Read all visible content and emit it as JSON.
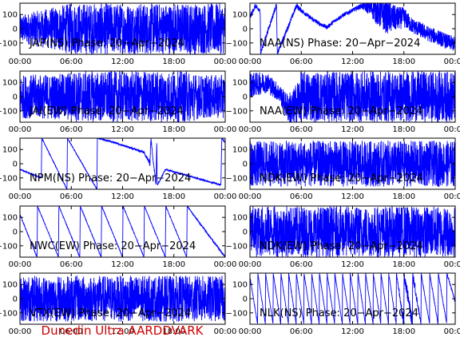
{
  "footer": "Dunedin Ultra AARDDVARK",
  "colors": {
    "trace": "#0000ff",
    "axes": "#000000",
    "footer": "#d00000",
    "background": "#ffffff"
  },
  "chart_data": [
    {
      "type": "line",
      "title": "JAP(NS) Phase: 20−Apr−2024",
      "ylim": [
        -180,
        180
      ],
      "yticks": [
        {
          "v": 100,
          "label": "100"
        },
        {
          "v": 0,
          "label": "0"
        },
        {
          "v": -100,
          "label": "−100"
        }
      ],
      "xlim": [
        0,
        24
      ],
      "xticks": [
        {
          "v": 0,
          "label": "00:00"
        },
        {
          "v": 6,
          "label": "06:00"
        },
        {
          "v": 12,
          "label": "12:00"
        },
        {
          "v": 18,
          "label": "18:00"
        },
        {
          "v": 24,
          "label": "00:00"
        }
      ],
      "series": [
        {
          "pattern": "noise",
          "x": [
            0,
            6,
            24
          ],
          "noise": [
            0.55,
            1,
            1
          ]
        }
      ]
    },
    {
      "type": "line",
      "title": "NAA(NS) Phase: 20−Apr−2024",
      "ylim": [
        -180,
        180
      ],
      "yticks": [
        {
          "v": 100,
          "label": "100"
        },
        {
          "v": 0,
          "label": "0"
        },
        {
          "v": -100,
          "label": "−100"
        }
      ],
      "xlim": [
        0,
        24
      ],
      "xticks": [
        {
          "v": 0,
          "label": "00:00"
        },
        {
          "v": 6,
          "label": "06:00"
        },
        {
          "v": 12,
          "label": "12:00"
        },
        {
          "v": 18,
          "label": "18:00"
        },
        {
          "v": 24,
          "label": "00:00"
        }
      ],
      "series": [
        {
          "pattern": "path",
          "x": [
            0,
            0.6,
            1.2,
            1.25,
            3.1,
            3.2,
            5.5,
            5.6,
            7,
            8,
            9,
            10,
            11,
            12,
            13,
            14,
            15,
            16,
            17,
            18,
            19,
            20,
            21,
            22,
            23,
            24
          ],
          "y": [
            80,
            160,
            120,
            -170,
            170,
            -175,
            170,
            150,
            80,
            40,
            10,
            60,
            100,
            130,
            160,
            150,
            120,
            90,
            70,
            80,
            20,
            -10,
            -40,
            -60,
            -90,
            -110
          ],
          "noise": [
            0.1,
            0.1,
            0.1,
            0.1,
            0.1,
            0.1,
            0.1,
            0.1,
            0.08,
            0.08,
            0.08,
            0.08,
            0.08,
            0.08,
            0.1,
            0.3,
            0.6,
            0.7,
            0.5,
            0.4,
            0.3,
            0.3,
            0.3,
            0.3,
            0.3,
            0.3
          ]
        }
      ]
    },
    {
      "type": "line",
      "title": "JAI(EW) Phase: 20−Apr−2024",
      "ylim": [
        -180,
        180
      ],
      "yticks": [
        {
          "v": 100,
          "label": "100"
        },
        {
          "v": 0,
          "label": "0"
        },
        {
          "v": -100,
          "label": "−100"
        }
      ],
      "xlim": [
        0,
        24
      ],
      "xticks": [
        {
          "v": 0,
          "label": "00:00"
        },
        {
          "v": 6,
          "label": "06:00"
        },
        {
          "v": 12,
          "label": "12:00"
        },
        {
          "v": 18,
          "label": "18:00"
        },
        {
          "v": 24,
          "label": "00:00"
        }
      ],
      "series": [
        {
          "pattern": "noise",
          "x": [
            0,
            5,
            6,
            20,
            21,
            24
          ],
          "noise": [
            0.85,
            0.9,
            1,
            1,
            0.85,
            0.85
          ]
        }
      ]
    },
    {
      "type": "line",
      "title": "NAA(EW) Phase: 20−Apr−2024",
      "ylim": [
        -180,
        180
      ],
      "yticks": [
        {
          "v": 100,
          "label": "100"
        },
        {
          "v": 0,
          "label": "0"
        },
        {
          "v": -100,
          "label": "−100"
        }
      ],
      "xlim": [
        0,
        24
      ],
      "xticks": [
        {
          "v": 0,
          "label": "00:00"
        },
        {
          "v": 6,
          "label": "06:00"
        },
        {
          "v": 12,
          "label": "12:00"
        },
        {
          "v": 18,
          "label": "18:00"
        },
        {
          "v": 24,
          "label": "00:00"
        }
      ],
      "series": [
        {
          "pattern": "path",
          "x": [
            0,
            2,
            3.5,
            4.2,
            5,
            6,
            12,
            18,
            24
          ],
          "y": [
            80,
            100,
            20,
            -60,
            -100,
            0,
            0,
            0,
            0
          ],
          "noise": [
            0.5,
            0.4,
            0.35,
            0.5,
            0.8,
            1,
            1,
            1,
            1
          ]
        }
      ]
    },
    {
      "type": "line",
      "title": "NPM(NS) Phase: 20−Apr−2024",
      "ylim": [
        -180,
        180
      ],
      "yticks": [
        {
          "v": 100,
          "label": "100"
        },
        {
          "v": 0,
          "label": "0"
        },
        {
          "v": -100,
          "label": "−100"
        }
      ],
      "xlim": [
        0,
        24
      ],
      "xticks": [
        {
          "v": 0,
          "label": "00:00"
        },
        {
          "v": 6,
          "label": "06:00"
        },
        {
          "v": 12,
          "label": "12:00"
        },
        {
          "v": 18,
          "label": "18:00"
        },
        {
          "v": 24,
          "label": "00:00"
        }
      ],
      "series": [
        {
          "pattern": "path",
          "x": [
            0,
            2.5,
            2.55,
            5.5,
            5.55,
            9,
            9.05,
            11,
            14.5,
            15.2,
            15.3,
            15.9,
            16,
            16.05,
            17,
            20,
            23.5,
            23.6,
            24
          ],
          "y": [
            -40,
            -100,
            180,
            -180,
            180,
            -180,
            180,
            150,
            80,
            0,
            180,
            -150,
            180,
            -150,
            -40,
            -90,
            -150,
            180,
            150
          ],
          "noise": [
            0.02,
            0.02,
            0.02,
            0.02,
            0.02,
            0.02,
            0.02,
            0.03,
            0.05,
            0.1,
            0.1,
            0.1,
            0.1,
            0.05,
            0.03,
            0.03,
            0.03,
            0.03,
            0.03
          ]
        }
      ]
    },
    {
      "type": "line",
      "title": "NDK(EW) Phase: 20−Apr−2024",
      "ylim": [
        -180,
        180
      ],
      "yticks": [
        {
          "v": 100,
          "label": "100"
        },
        {
          "v": 0,
          "label": "0"
        },
        {
          "v": -100,
          "label": "−100"
        }
      ],
      "xlim": [
        0,
        24
      ],
      "xticks": [
        {
          "v": 0,
          "label": "00:00"
        },
        {
          "v": 6,
          "label": "06:00"
        },
        {
          "v": 12,
          "label": "12:00"
        },
        {
          "v": 18,
          "label": "18:00"
        },
        {
          "v": 24,
          "label": "00:00"
        }
      ],
      "series": [
        {
          "pattern": "noise",
          "x": [
            0,
            24
          ],
          "noise": [
            0.9,
            0.9
          ]
        }
      ]
    },
    {
      "type": "line",
      "title": "NWC(EW) Phase: 20−Apr−2024",
      "ylim": [
        -180,
        180
      ],
      "yticks": [
        {
          "v": 100,
          "label": "100"
        },
        {
          "v": 0,
          "label": "0"
        },
        {
          "v": -100,
          "label": "−100"
        }
      ],
      "xlim": [
        0,
        24
      ],
      "xticks": [
        {
          "v": 0,
          "label": "00:00"
        },
        {
          "v": 6,
          "label": "06:00"
        },
        {
          "v": 12,
          "label": "12:00"
        },
        {
          "v": 18,
          "label": "18:00"
        },
        {
          "v": 24,
          "label": "00:00"
        }
      ],
      "series": [
        {
          "pattern": "path",
          "x": [
            0,
            2,
            2.05,
            4.5,
            4.55,
            7,
            7.05,
            9.5,
            9.55,
            12,
            12.05,
            14.5,
            14.55,
            17,
            17.05,
            19.5,
            19.55,
            22,
            24
          ],
          "y": [
            120,
            -180,
            180,
            -180,
            180,
            -180,
            180,
            -180,
            180,
            -180,
            180,
            -180,
            180,
            -180,
            180,
            -180,
            180,
            -20,
            -180
          ],
          "noise": [
            0.02,
            0.02,
            0.02,
            0.02,
            0.02,
            0.02,
            0.02,
            0.02,
            0.02,
            0.02,
            0.02,
            0.02,
            0.02,
            0.02,
            0.02,
            0.02,
            0.02,
            0.05,
            0.05
          ]
        }
      ]
    },
    {
      "type": "line",
      "title": "NDK(EW) Phase: 20−Apr−2024",
      "ylim": [
        -180,
        180
      ],
      "yticks": [
        {
          "v": 100,
          "label": "100"
        },
        {
          "v": 0,
          "label": "0"
        },
        {
          "v": -100,
          "label": "−100"
        }
      ],
      "xlim": [
        0,
        24
      ],
      "xticks": [
        {
          "v": 0,
          "label": "00:00"
        },
        {
          "v": 6,
          "label": "06:00"
        },
        {
          "v": 12,
          "label": "12:00"
        },
        {
          "v": 18,
          "label": "18:00"
        },
        {
          "v": 24,
          "label": "00:00"
        }
      ],
      "series": [
        {
          "pattern": "noise",
          "x": [
            0,
            24
          ],
          "noise": [
            1,
            1
          ]
        }
      ]
    },
    {
      "type": "line",
      "title": "VTX(EW) Phase: 20−Apr−2024",
      "ylim": [
        -180,
        180
      ],
      "yticks": [
        {
          "v": 100,
          "label": "100"
        },
        {
          "v": 0,
          "label": "0"
        },
        {
          "v": -100,
          "label": "−100"
        }
      ],
      "xlim": [
        0,
        24
      ],
      "xticks": [
        {
          "v": 0,
          "label": "00:00"
        },
        {
          "v": 6,
          "label": "06:00"
        },
        {
          "v": 12,
          "label": "12:00"
        },
        {
          "v": 18,
          "label": "18:00"
        },
        {
          "v": 24,
          "label": "00:00"
        }
      ],
      "series": [
        {
          "pattern": "noise",
          "x": [
            0,
            24
          ],
          "noise": [
            0.9,
            0.9
          ]
        }
      ]
    },
    {
      "type": "line",
      "title": "NLK(NS) Phase: 20−Apr−2024",
      "ylim": [
        -180,
        180
      ],
      "yticks": [
        {
          "v": 100,
          "label": "100"
        },
        {
          "v": 0,
          "label": "0"
        },
        {
          "v": -100,
          "label": "−100"
        }
      ],
      "xlim": [
        0,
        24
      ],
      "xticks": [
        {
          "v": 0,
          "label": "00:00"
        },
        {
          "v": 6,
          "label": "06:00"
        },
        {
          "v": 12,
          "label": "12:00"
        },
        {
          "v": 18,
          "label": "18:00"
        },
        {
          "v": 24,
          "label": "00:00"
        }
      ],
      "series": [
        {
          "pattern": "path",
          "x": [
            0,
            0.9,
            0.92,
            1.8,
            1.82,
            2.7,
            2.72,
            3.6,
            3.62,
            4.5,
            4.52,
            5.4,
            5.42,
            6.3,
            6.32,
            7.2,
            7.22,
            8.1,
            8.12,
            9,
            9.02,
            9.9,
            9.92,
            10.8,
            10.82,
            11.7,
            11.72,
            12.6,
            12.62,
            13.5,
            13.52,
            14.4,
            14.42,
            15.3,
            15.32,
            16.2,
            16.22,
            17.1,
            17.12,
            18,
            18.02,
            19,
            19.02,
            20,
            20.02,
            21,
            21.02,
            22,
            22.02,
            23,
            23.02,
            24
          ],
          "y": [
            150,
            -180,
            180,
            -180,
            180,
            -180,
            180,
            -180,
            180,
            -180,
            180,
            -180,
            180,
            -180,
            180,
            -180,
            180,
            -180,
            180,
            -180,
            180,
            -180,
            180,
            -180,
            180,
            -180,
            180,
            -180,
            180,
            -180,
            180,
            -180,
            180,
            -180,
            180,
            -180,
            180,
            -180,
            180,
            -180,
            180,
            -180,
            180,
            -180,
            180,
            -180,
            180,
            -180,
            180,
            -180,
            180,
            -20
          ],
          "noise": [
            0.03,
            0.03,
            0.03,
            0.03,
            0.03,
            0.03,
            0.03,
            0.03,
            0.03,
            0.03,
            0.03,
            0.03,
            0.03,
            0.03,
            0.03,
            0.03,
            0.03,
            0.03,
            0.03,
            0.03,
            0.03,
            0.03,
            0.03,
            0.03,
            0.03,
            0.03,
            0.03,
            0.03,
            0.03,
            0.03,
            0.03,
            0.03,
            0.03,
            0.03,
            0.03,
            0.03,
            0.03,
            0.03,
            0.03,
            0.25,
            0.25,
            0.25,
            0.25,
            0.05,
            0.05,
            0.05,
            0.05,
            0.05,
            0.05,
            0.05,
            0.05,
            0.05
          ]
        }
      ]
    }
  ]
}
